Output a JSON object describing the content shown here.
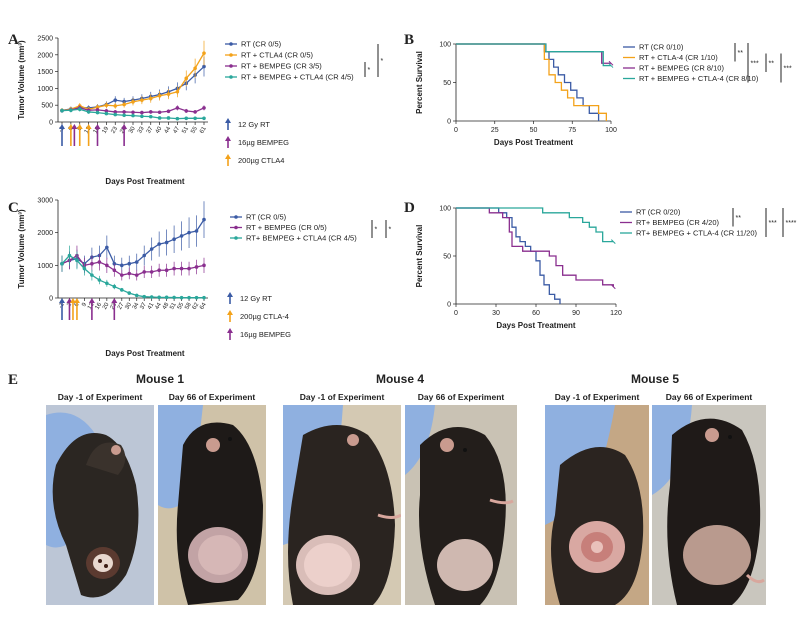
{
  "panel_labels": {
    "a": "A",
    "b": "B",
    "c": "C",
    "d": "D",
    "e": "E"
  },
  "chart_data": [
    {
      "id": "A",
      "type": "line",
      "ylabel": "Tumor Volume (mm³)",
      "xlabel": "Days Post Treatment",
      "ylim": [
        0,
        2500
      ],
      "yticks": [
        0,
        500,
        1000,
        1500,
        2000,
        2500
      ],
      "categories": [
        "-1",
        "6",
        "9",
        "13",
        "16",
        "19",
        "23",
        "26",
        "30",
        "33",
        "37",
        "40",
        "44",
        "47",
        "51",
        "55",
        "61"
      ],
      "series": [
        {
          "name": "RT (CR 0/5)",
          "color": "#3b5ba5",
          "values": [
            340,
            390,
            430,
            420,
            450,
            520,
            650,
            610,
            650,
            700,
            760,
            820,
            900,
            1000,
            1150,
            1400,
            1650
          ]
        },
        {
          "name": "RT + CTLA4 (CR 0/5)",
          "color": "#f3a21a",
          "values": [
            350,
            380,
            480,
            380,
            440,
            500,
            480,
            520,
            600,
            650,
            700,
            780,
            830,
            900,
            1300,
            1600,
            2050
          ]
        },
        {
          "name": "RT + BEMPEG (CR 3/5)",
          "color": "#8a2f8f",
          "values": [
            340,
            360,
            420,
            350,
            360,
            330,
            300,
            300,
            290,
            280,
            300,
            290,
            320,
            420,
            330,
            300,
            420
          ]
        },
        {
          "name": "RT + BEMPEG + CTLA4 (CR 4/5)",
          "color": "#2aa79b",
          "values": [
            340,
            350,
            380,
            300,
            280,
            250,
            220,
            200,
            190,
            170,
            160,
            120,
            120,
            100,
            110,
            110,
            110
          ]
        }
      ],
      "significance": [
        "*",
        "*"
      ],
      "arrow_legend": [
        {
          "label": "12 Gy RT",
          "color": "#3b5ba5"
        },
        {
          "label": "16µg BEMPEG",
          "color": "#8a2f8f"
        },
        {
          "label": "200µg CTLA4",
          "color": "#f3a21a"
        }
      ],
      "treatment_arrows": [
        {
          "day": "-1",
          "color": "#3b5ba5"
        },
        {
          "day": "6",
          "color": "#f3a21a"
        },
        {
          "day": "6",
          "color": "#8a2f8f"
        },
        {
          "day": "9",
          "color": "#f3a21a"
        },
        {
          "day": "13",
          "color": "#f3a21a"
        },
        {
          "day": "16",
          "color": "#8a2f8f"
        },
        {
          "day": "26",
          "color": "#8a2f8f"
        }
      ]
    },
    {
      "id": "B",
      "type": "line",
      "ylabel": "Percent Survival",
      "xlabel": "Days Post Treatment",
      "xlim": [
        0,
        100
      ],
      "ylim": [
        0,
        100
      ],
      "xticks": [
        0,
        25,
        50,
        75,
        100
      ],
      "yticks": [
        0,
        50,
        100
      ],
      "series": [
        {
          "name": "RT (CR 0/10)",
          "color": "#3b5ba5",
          "steps": [
            [
              0,
              100
            ],
            [
              55,
              100
            ],
            [
              57,
              90
            ],
            [
              60,
              80
            ],
            [
              63,
              70
            ],
            [
              66,
              60
            ],
            [
              70,
              50
            ],
            [
              74,
              40
            ],
            [
              78,
              30
            ],
            [
              82,
              20
            ],
            [
              86,
              10
            ],
            [
              92,
              0
            ]
          ]
        },
        {
          "name": "RT + CTLA-4 (CR 1/10)",
          "color": "#f3a21a",
          "steps": [
            [
              0,
              100
            ],
            [
              54,
              100
            ],
            [
              57,
              80
            ],
            [
              60,
              60
            ],
            [
              64,
              50
            ],
            [
              68,
              40
            ],
            [
              72,
              30
            ],
            [
              76,
              20
            ],
            [
              92,
              10
            ],
            [
              97,
              0
            ]
          ]
        },
        {
          "name": "RT + BEMPEG (CR 8/10)",
          "color": "#8a2f8f",
          "steps": [
            [
              0,
              100
            ],
            [
              56,
              100
            ],
            [
              58,
              90
            ],
            [
              92,
              90
            ],
            [
              94,
              75
            ],
            [
              100,
              75
            ]
          ]
        },
        {
          "name": "RT + BEMPEG + CTLA-4 (CR 8/10)",
          "color": "#2aa79b",
          "steps": [
            [
              0,
              100
            ],
            [
              56,
              100
            ],
            [
              58,
              90
            ],
            [
              93,
              90
            ],
            [
              95,
              72
            ],
            [
              100,
              72
            ]
          ]
        }
      ],
      "significance": [
        "**",
        "***",
        "**",
        "***"
      ]
    },
    {
      "id": "C",
      "type": "line",
      "ylabel": "Tumor Volume (mm³)",
      "xlabel": "Days Post Treatment",
      "ylim": [
        0,
        3000
      ],
      "yticks": [
        0,
        1000,
        2000,
        3000
      ],
      "categories": [
        "-1",
        "2",
        "6",
        "9",
        "13",
        "16",
        "20",
        "23",
        "27",
        "30",
        "34",
        "37",
        "41",
        "44",
        "48",
        "51",
        "55",
        "58",
        "62",
        "64"
      ],
      "series": [
        {
          "name": "RT (CR 0/5)",
          "color": "#3b5ba5",
          "values": [
            1050,
            1150,
            1200,
            1050,
            1250,
            1300,
            1550,
            1050,
            1000,
            1050,
            1100,
            1300,
            1500,
            1650,
            1700,
            1800,
            1900,
            2000,
            2050,
            2400
          ]
        },
        {
          "name": "RT + BEMPEG (CR 0/5)",
          "color": "#8a2f8f",
          "values": [
            1050,
            1150,
            1300,
            1000,
            1050,
            1100,
            1000,
            850,
            700,
            750,
            700,
            800,
            800,
            850,
            850,
            900,
            900,
            900,
            950,
            1000
          ]
        },
        {
          "name": "RT+ BEMPEG + CTLA4 (CR 4/5)",
          "color": "#2aa79b",
          "values": [
            1050,
            1300,
            1150,
            900,
            700,
            550,
            450,
            350,
            250,
            150,
            80,
            40,
            30,
            20,
            20,
            15,
            10,
            10,
            10,
            10
          ]
        }
      ],
      "significance": [
        "*",
        "*"
      ],
      "arrow_legend": [
        {
          "label": "12 Gy RT",
          "color": "#3b5ba5"
        },
        {
          "label": "200µg CTLA-4",
          "color": "#f3a21a"
        },
        {
          "label": "16µg BEMPEG",
          "color": "#8a2f8f"
        }
      ],
      "treatment_arrows": [
        {
          "day": "-1",
          "color": "#3b5ba5"
        },
        {
          "day": "2",
          "color": "#8a2f8f"
        },
        {
          "day": "2",
          "color": "#f3a21a"
        },
        {
          "day": "6",
          "color": "#f3a21a"
        },
        {
          "day": "13",
          "color": "#8a2f8f"
        },
        {
          "day": "23",
          "color": "#8a2f8f"
        }
      ]
    },
    {
      "id": "D",
      "type": "line",
      "ylabel": "Percent Survival",
      "xlabel": "Days Post Treatment",
      "xlim": [
        0,
        120
      ],
      "ylim": [
        0,
        100
      ],
      "xticks": [
        0,
        30,
        60,
        90,
        120
      ],
      "yticks": [
        0,
        50,
        100
      ],
      "series": [
        {
          "name": "RT (CR 0/20)",
          "color": "#3b5ba5",
          "steps": [
            [
              0,
              100
            ],
            [
              28,
              100
            ],
            [
              32,
              95
            ],
            [
              38,
              90
            ],
            [
              42,
              80
            ],
            [
              45,
              70
            ],
            [
              48,
              65
            ],
            [
              52,
              60
            ],
            [
              56,
              55
            ],
            [
              60,
              45
            ],
            [
              63,
              30
            ],
            [
              66,
              20
            ],
            [
              70,
              10
            ],
            [
              74,
              5
            ],
            [
              78,
              0
            ]
          ]
        },
        {
          "name": "RT+ BEMPEG (CR 4/20)",
          "color": "#8a2f8f",
          "steps": [
            [
              0,
              100
            ],
            [
              20,
              100
            ],
            [
              25,
              95
            ],
            [
              35,
              90
            ],
            [
              40,
              75
            ],
            [
              42,
              60
            ],
            [
              50,
              55
            ],
            [
              70,
              50
            ],
            [
              75,
              40
            ],
            [
              80,
              30
            ],
            [
              90,
              25
            ],
            [
              110,
              20
            ],
            [
              118,
              18
            ]
          ]
        },
        {
          "name": "RT+ BEMPEG + CTLA-4 (CR 11/20)",
          "color": "#2aa79b",
          "steps": [
            [
              0,
              100
            ],
            [
              60,
              100
            ],
            [
              65,
              95
            ],
            [
              85,
              90
            ],
            [
              95,
              85
            ],
            [
              100,
              80
            ],
            [
              105,
              75
            ],
            [
              110,
              65
            ],
            [
              118,
              65
            ]
          ]
        }
      ],
      "significance": [
        "**",
        "***",
        "****"
      ]
    }
  ],
  "photos": {
    "section_title": "E",
    "groups": [
      {
        "title": "Mouse 1",
        "left_label": "Day -1 of Experiment",
        "right_label": "Day 66 of Experiment"
      },
      {
        "title": "Mouse 4",
        "left_label": "Day -1 of Experiment",
        "right_label": "Day 66 of Experiment"
      },
      {
        "title": "Mouse 5",
        "left_label": "Day -1 of Experiment",
        "right_label": "Day 66 of Experiment"
      }
    ]
  }
}
